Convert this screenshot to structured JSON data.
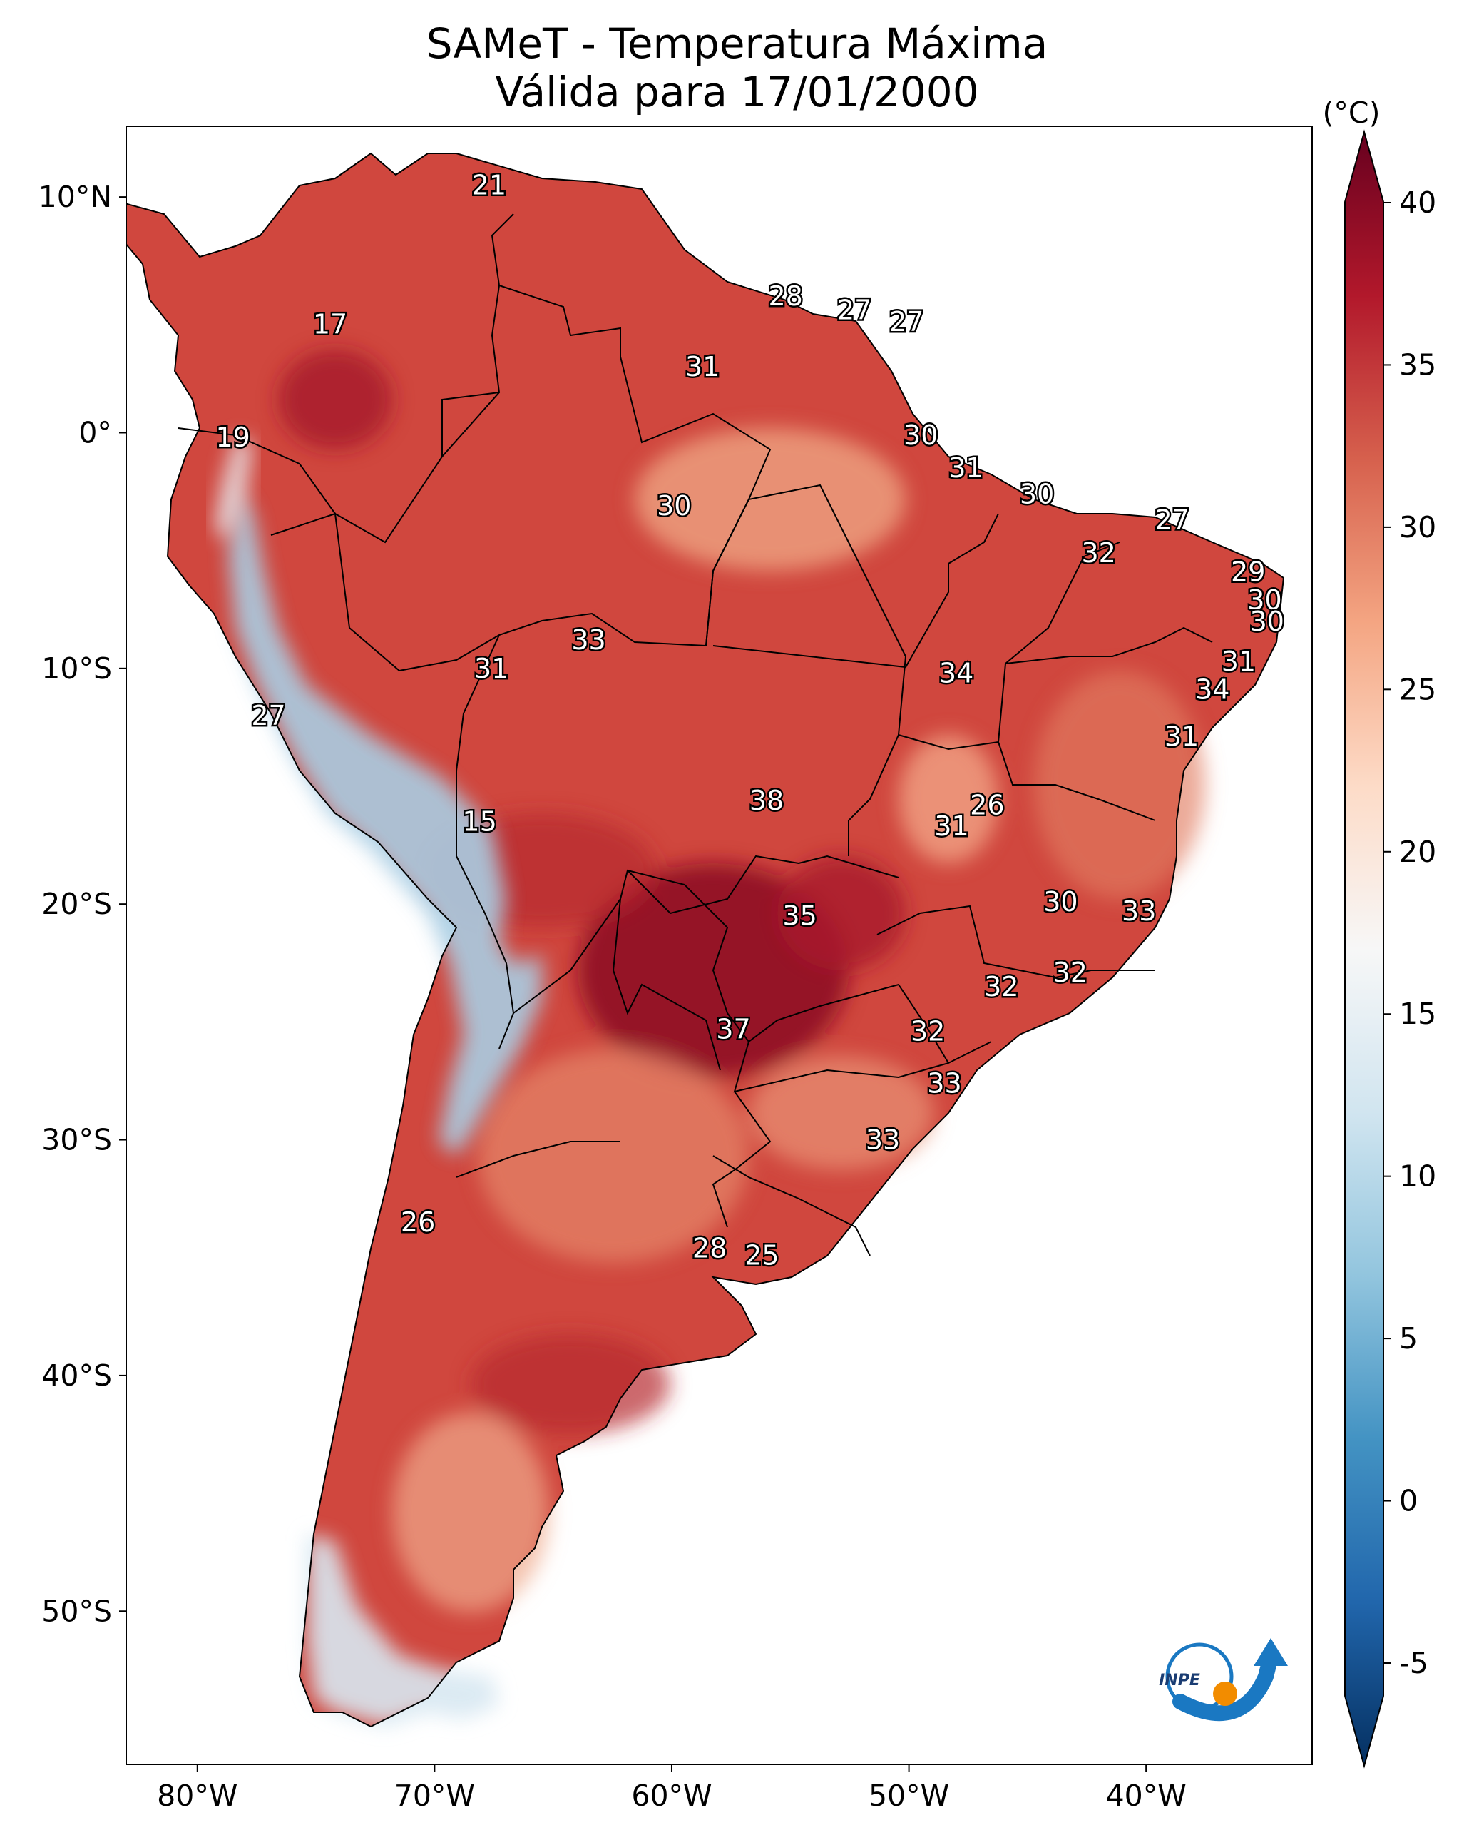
{
  "title": {
    "line1": "SAMeT - Temperatura Máxima",
    "line2": "Válida para 17/01/2000"
  },
  "map": {
    "lon_range": [
      -83,
      -33
    ],
    "lat_range": [
      -56.5,
      13
    ],
    "lon_ticks": [
      {
        "lon": -80,
        "label": "80°W"
      },
      {
        "lon": -70,
        "label": "70°W"
      },
      {
        "lon": -60,
        "label": "60°W"
      },
      {
        "lon": -50,
        "label": "50°W"
      },
      {
        "lon": -40,
        "label": "40°W"
      }
    ],
    "lat_ticks": [
      {
        "lat": 10,
        "label": "10°N"
      },
      {
        "lat": 0,
        "label": "0°"
      },
      {
        "lat": -10,
        "label": "10°S"
      },
      {
        "lat": -20,
        "label": "20°S"
      },
      {
        "lat": -30,
        "label": "30°S"
      },
      {
        "lat": -40,
        "label": "40°S"
      },
      {
        "lat": -50,
        "label": "50°S"
      }
    ],
    "station_values": [
      {
        "lon": -67.7,
        "lat": 10.5,
        "value": "21"
      },
      {
        "lon": -74.4,
        "lat": 4.6,
        "value": "17"
      },
      {
        "lon": -55.2,
        "lat": 5.8,
        "value": "28"
      },
      {
        "lon": -52.3,
        "lat": 5.2,
        "value": "27"
      },
      {
        "lon": -50.1,
        "lat": 4.7,
        "value": "27"
      },
      {
        "lon": -58.7,
        "lat": 2.8,
        "value": "31"
      },
      {
        "lon": -78.5,
        "lat": -0.2,
        "value": "19"
      },
      {
        "lon": -49.5,
        "lat": -0.1,
        "value": "30"
      },
      {
        "lon": -47.6,
        "lat": -1.5,
        "value": "31"
      },
      {
        "lon": -44.6,
        "lat": -2.6,
        "value": "30"
      },
      {
        "lon": -59.9,
        "lat": -3.1,
        "value": "30"
      },
      {
        "lon": -38.9,
        "lat": -3.7,
        "value": "27"
      },
      {
        "lon": -42.0,
        "lat": -5.1,
        "value": "32"
      },
      {
        "lon": -35.7,
        "lat": -5.9,
        "value": "29"
      },
      {
        "lon": -35.0,
        "lat": -7.1,
        "value": "30"
      },
      {
        "lon": -34.9,
        "lat": -8.0,
        "value": "30"
      },
      {
        "lon": -63.5,
        "lat": -8.8,
        "value": "33"
      },
      {
        "lon": -36.1,
        "lat": -9.7,
        "value": "31"
      },
      {
        "lon": -67.6,
        "lat": -10.0,
        "value": "31"
      },
      {
        "lon": -48.0,
        "lat": -10.2,
        "value": "34"
      },
      {
        "lon": -37.2,
        "lat": -10.9,
        "value": "34"
      },
      {
        "lon": -77.0,
        "lat": -12.0,
        "value": "27"
      },
      {
        "lon": -38.5,
        "lat": -12.9,
        "value": "31"
      },
      {
        "lon": -46.7,
        "lat": -15.8,
        "value": "26"
      },
      {
        "lon": -56.0,
        "lat": -15.6,
        "value": "38"
      },
      {
        "lon": -48.2,
        "lat": -16.7,
        "value": "31"
      },
      {
        "lon": -68.1,
        "lat": -16.5,
        "value": "15"
      },
      {
        "lon": -43.6,
        "lat": -19.9,
        "value": "30"
      },
      {
        "lon": -40.3,
        "lat": -20.3,
        "value": "33"
      },
      {
        "lon": -54.6,
        "lat": -20.5,
        "value": "35"
      },
      {
        "lon": -43.2,
        "lat": -22.9,
        "value": "32"
      },
      {
        "lon": -46.1,
        "lat": -23.5,
        "value": "32"
      },
      {
        "lon": -57.4,
        "lat": -25.3,
        "value": "37"
      },
      {
        "lon": -49.2,
        "lat": -25.4,
        "value": "32"
      },
      {
        "lon": -48.5,
        "lat": -27.6,
        "value": "33"
      },
      {
        "lon": -51.1,
        "lat": -30.0,
        "value": "33"
      },
      {
        "lon": -70.7,
        "lat": -33.5,
        "value": "26"
      },
      {
        "lon": -58.4,
        "lat": -34.6,
        "value": "28"
      },
      {
        "lon": -56.2,
        "lat": -34.9,
        "value": "25"
      }
    ]
  },
  "colorbar": {
    "unit": "(°C)",
    "min": -7,
    "max": 42,
    "ticks": [
      "-5",
      "0",
      "5",
      "10",
      "15",
      "20",
      "25",
      "30",
      "35",
      "40"
    ],
    "colors": [
      "#053061",
      "#2166ac",
      "#4393c3",
      "#92c5de",
      "#d1e5f0",
      "#f7f7f7",
      "#fddbc7",
      "#f4a582",
      "#d6604d",
      "#b2182b",
      "#67001f"
    ]
  },
  "logo": {
    "text": "INPE"
  }
}
